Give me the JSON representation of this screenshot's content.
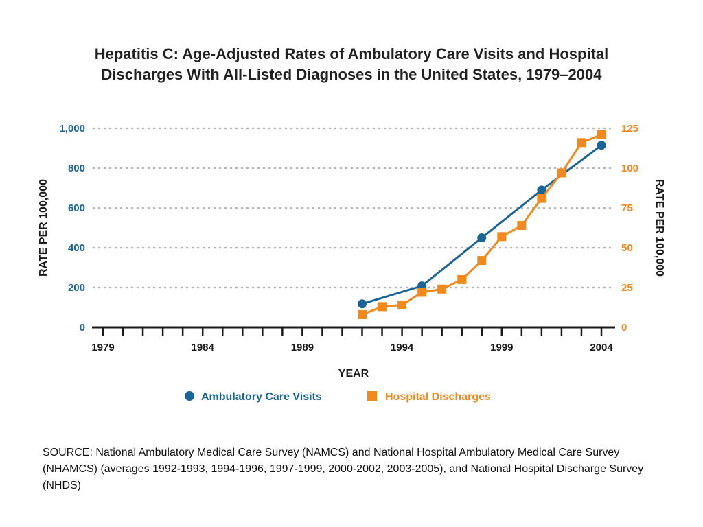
{
  "title_lines": [
    "Hepatitis C:  Age-Adjusted Rates of Ambulatory Care Visits and Hospital",
    "Discharges With All-Listed Diagnoses in the United States, 1979–2004"
  ],
  "source_note": "SOURCE: National Ambulatory Medical Care Survey (NAMCS) and National Hospital Ambulatory Medical Care Survey (NHAMCS) (averages 1992-1993, 1994-1996, 1997-1999, 2000-2002, 2003-2005), and National Hospital Discharge Survey (NHDS)",
  "colors": {
    "ambulatory": "#1a6496",
    "hospital": "#f08a1e",
    "grid": "#b5b5b5",
    "axis": "#1a1a1a"
  },
  "chart_data": {
    "type": "line",
    "xlabel": "YEAR",
    "ylabel_left": "RATE PER 100,000",
    "ylabel_right": "RATE PER 100,000",
    "xlim": [
      1979,
      2004
    ],
    "x_tick_labels": [
      "1979",
      "1984",
      "1989",
      "1994",
      "1999",
      "2004"
    ],
    "x_tick_values": [
      1979,
      1984,
      1989,
      1994,
      1999,
      2004
    ],
    "y_left_lim": [
      0,
      1000
    ],
    "y_left_ticks": [
      "0",
      "200",
      "400",
      "600",
      "800",
      "1,000"
    ],
    "y_left_tick_values": [
      0,
      200,
      400,
      600,
      800,
      1000
    ],
    "y_right_lim": [
      0,
      125
    ],
    "y_right_ticks": [
      "0",
      "25",
      "50",
      "75",
      "100",
      "125"
    ],
    "y_right_tick_values": [
      0,
      25,
      50,
      75,
      100,
      125
    ],
    "grid": true,
    "legend_position": "bottom",
    "series": [
      {
        "name": "Ambulatory Care Visits",
        "axis": "left",
        "marker": "circle",
        "x": [
          1992,
          1995,
          1998,
          2001,
          2004
        ],
        "values": [
          118,
          208,
          450,
          690,
          915
        ]
      },
      {
        "name": "Hospital Discharges",
        "axis": "right",
        "marker": "square",
        "x": [
          1992,
          1993,
          1994,
          1995,
          1996,
          1997,
          1998,
          1999,
          2000,
          2001,
          2002,
          2003,
          2004
        ],
        "values": [
          8,
          13,
          14,
          22,
          24,
          30,
          42,
          57,
          64,
          81,
          97,
          116,
          121
        ]
      }
    ]
  }
}
